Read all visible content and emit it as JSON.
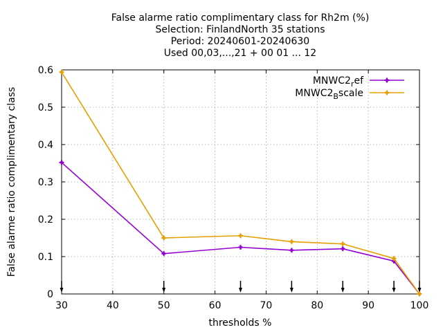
{
  "chart_data": {
    "type": "line",
    "title_lines": [
      "False alarme ratio complimentary class  for Rh2m (%)",
      "Selection: FinlandNorth     35 stations",
      "Period: 20240601-20240630",
      "Used 00,03,...,21 + 00 01 ... 12"
    ],
    "xlabel": "thresholds %",
    "ylabel": "False alarme ratio complimentary class",
    "xlim": [
      30,
      100
    ],
    "ylim": [
      0,
      0.6
    ],
    "xticks": [
      30,
      40,
      50,
      60,
      70,
      80,
      90,
      100
    ],
    "yticks": [
      0,
      0.1,
      0.2,
      0.3,
      0.4,
      0.5,
      0.6
    ],
    "xtick_labels": [
      "30",
      "40",
      "50",
      "60",
      "70",
      "80",
      "90",
      "100"
    ],
    "ytick_labels": [
      "0",
      "0.1",
      "0.2",
      "0.3",
      "0.4",
      "0.5",
      "0.6"
    ],
    "grid": true,
    "legend_position": "top-right",
    "arrow_markers_x": [
      30,
      50,
      65,
      75,
      85,
      95,
      100
    ],
    "x": [
      30,
      50,
      65,
      75,
      85,
      95,
      100
    ],
    "series": [
      {
        "name_base": "MNWC2",
        "name_sub": "r",
        "name_rest": "ef",
        "color": "#9400d3",
        "values": [
          0.352,
          0.108,
          0.125,
          0.117,
          0.121,
          0.088,
          0.0
        ]
      },
      {
        "name_base": "MNWC2",
        "name_sub": "B",
        "name_rest": "scale",
        "color": "#e69f00",
        "values": [
          0.594,
          0.15,
          0.156,
          0.14,
          0.134,
          0.095,
          0.0
        ]
      }
    ]
  }
}
